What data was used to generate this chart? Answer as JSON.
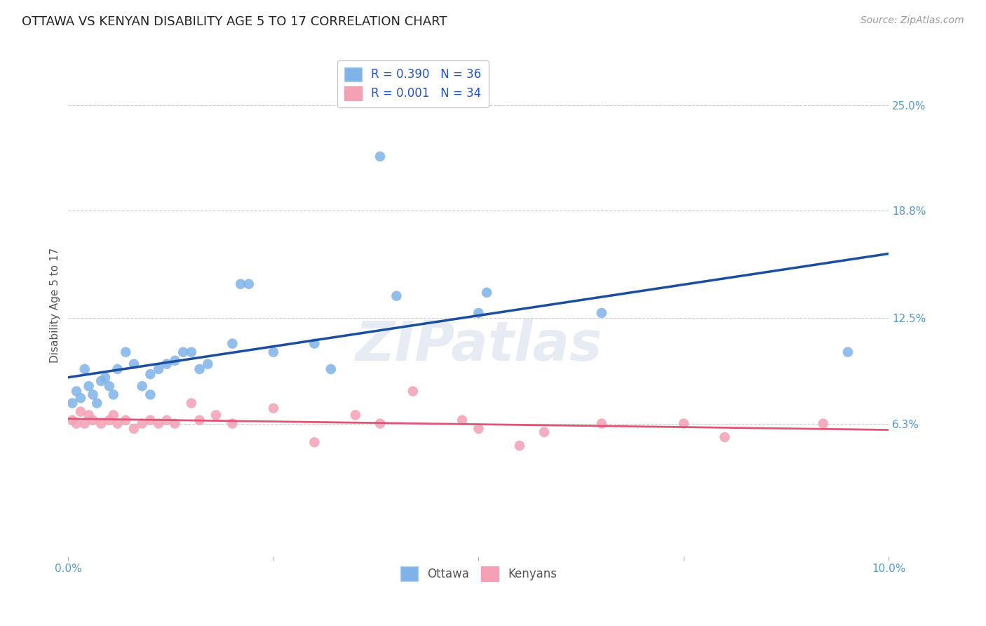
{
  "title": "OTTAWA VS KENYAN DISABILITY AGE 5 TO 17 CORRELATION CHART",
  "source": "Source: ZipAtlas.com",
  "ylabel_label": "Disability Age 5 to 17",
  "xlim": [
    0.0,
    10.0
  ],
  "ylim": [
    -1.5,
    28.0
  ],
  "y_tick_vals_right": [
    6.3,
    12.5,
    18.8,
    25.0
  ],
  "y_tick_labels_right": [
    "6.3%",
    "12.5%",
    "18.8%",
    "25.0%"
  ],
  "watermark": "ZIPatlas",
  "legend_ottawa_r": "R = 0.390",
  "legend_ottawa_n": "N = 36",
  "legend_kenyan_r": "R = 0.001",
  "legend_kenyan_n": "N = 34",
  "ottawa_color": "#7fb3e8",
  "kenyan_color": "#f4a0b5",
  "ottawa_line_color": "#1a4fa0",
  "kenyan_line_color": "#e05575",
  "background_color": "#ffffff",
  "grid_color": "#cccccc",
  "ottawa_x": [
    0.05,
    0.1,
    0.15,
    0.2,
    0.25,
    0.3,
    0.35,
    0.4,
    0.45,
    0.5,
    0.55,
    0.6,
    0.7,
    0.8,
    0.9,
    1.0,
    1.0,
    1.1,
    1.2,
    1.3,
    1.4,
    1.5,
    1.6,
    1.7,
    2.0,
    2.1,
    2.2,
    2.5,
    3.0,
    3.2,
    3.8,
    4.0,
    5.0,
    5.1,
    6.5,
    9.5
  ],
  "ottawa_y": [
    7.5,
    8.2,
    7.8,
    9.5,
    8.5,
    8.0,
    7.5,
    8.8,
    9.0,
    8.5,
    8.0,
    9.5,
    10.5,
    9.8,
    8.5,
    8.0,
    9.2,
    9.5,
    9.8,
    10.0,
    10.5,
    10.5,
    9.5,
    9.8,
    11.0,
    14.5,
    14.5,
    10.5,
    11.0,
    9.5,
    22.0,
    13.8,
    12.8,
    14.0,
    12.8,
    10.5
  ],
  "kenyan_x": [
    0.05,
    0.1,
    0.15,
    0.2,
    0.25,
    0.3,
    0.4,
    0.5,
    0.55,
    0.6,
    0.7,
    0.8,
    0.9,
    1.0,
    1.1,
    1.2,
    1.3,
    1.5,
    1.6,
    1.8,
    2.0,
    2.5,
    3.0,
    3.5,
    3.8,
    4.2,
    4.8,
    5.0,
    5.5,
    5.8,
    6.5,
    7.5,
    8.0,
    9.2
  ],
  "kenyan_y": [
    6.5,
    6.3,
    7.0,
    6.3,
    6.8,
    6.5,
    6.3,
    6.5,
    6.8,
    6.3,
    6.5,
    6.0,
    6.3,
    6.5,
    6.3,
    6.5,
    6.3,
    7.5,
    6.5,
    6.8,
    6.3,
    7.2,
    5.2,
    6.8,
    6.3,
    8.2,
    6.5,
    6.0,
    5.0,
    5.8,
    6.3,
    6.3,
    5.5,
    6.3
  ],
  "title_fontsize": 13,
  "label_fontsize": 11,
  "tick_fontsize": 11,
  "legend_fontsize": 12,
  "source_fontsize": 10
}
